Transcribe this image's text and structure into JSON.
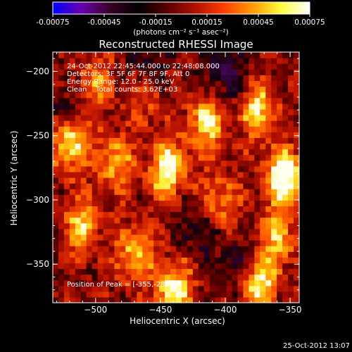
{
  "colorbar": {
    "ticks": [
      "-0.00075",
      "-0.00045",
      "-0.00015",
      "0.00015",
      "0.00045",
      "0.00075"
    ],
    "units": "(photons cm⁻² s⁻¹ asec⁻²)",
    "colors": [
      "#0000ff",
      "#6a00b0",
      "#3a0028",
      "#000000",
      "#5a0000",
      "#b01000",
      "#ff4000",
      "#ff9a00",
      "#ffff40",
      "#ffffff"
    ]
  },
  "info": {
    "time_range": "24-Oct-2012 22:45:44.000 to 22:48:08.000",
    "detectors": "Detectors: 3F 5F 6F 7F 8F 9F, Att 0",
    "energy": "Energy Range: 12.0 - 25.0 keV",
    "clean": "Clean    Total counts: 3.62E+03",
    "peak": "Position of Peak = [-355,-282]"
  },
  "footer": {
    "date": "25-Oct-2012 13:07"
  },
  "chart_data": {
    "type": "heatmap",
    "title": "Reconstructed RHESSI Image",
    "xlabel": "Heliocentric X (arcsec)",
    "ylabel": "Heliocentric Y (arcsec)",
    "xlim": [
      -533,
      -343
    ],
    "ylim": [
      -380,
      -185
    ],
    "xticks": [
      -500,
      -450,
      -400,
      -350
    ],
    "yticks": [
      -200,
      -250,
      -300,
      -350
    ],
    "xtick_labels": [
      "−500",
      "−450",
      "−400",
      "−350"
    ],
    "ytick_labels": [
      "−200",
      "−250",
      "−300",
      "−350"
    ],
    "peak": {
      "x": -355,
      "y": -282
    },
    "colorscale_range": [
      -0.00075,
      0.00075
    ],
    "hotspots": [
      {
        "x": -355,
        "y": -282,
        "intensity": 1.0
      },
      {
        "x": -445,
        "y": -275,
        "intensity": 0.85
      },
      {
        "x": -520,
        "y": -255,
        "intensity": 0.8
      },
      {
        "x": -415,
        "y": -240,
        "intensity": 0.7
      },
      {
        "x": -375,
        "y": -230,
        "intensity": 0.65
      },
      {
        "x": -440,
        "y": -370,
        "intensity": 0.8
      },
      {
        "x": -375,
        "y": -365,
        "intensity": 0.85
      },
      {
        "x": -510,
        "y": -320,
        "intensity": 0.6
      },
      {
        "x": -485,
        "y": -270,
        "intensity": 0.55
      },
      {
        "x": -470,
        "y": -340,
        "intensity": 0.6
      },
      {
        "x": -405,
        "y": -300,
        "intensity": 0.5
      },
      {
        "x": -500,
        "y": -210,
        "intensity": 0.45
      },
      {
        "x": -460,
        "y": -220,
        "intensity": 0.4
      },
      {
        "x": -360,
        "y": -330,
        "intensity": 0.55
      }
    ],
    "coldspots": [
      {
        "x": -400,
        "y": -200,
        "intensity": -0.45
      },
      {
        "x": -460,
        "y": -200,
        "intensity": -0.35
      },
      {
        "x": -390,
        "y": -350,
        "intensity": -0.4
      },
      {
        "x": -525,
        "y": -230,
        "intensity": -0.3
      },
      {
        "x": -420,
        "y": -320,
        "intensity": -0.3
      }
    ]
  }
}
